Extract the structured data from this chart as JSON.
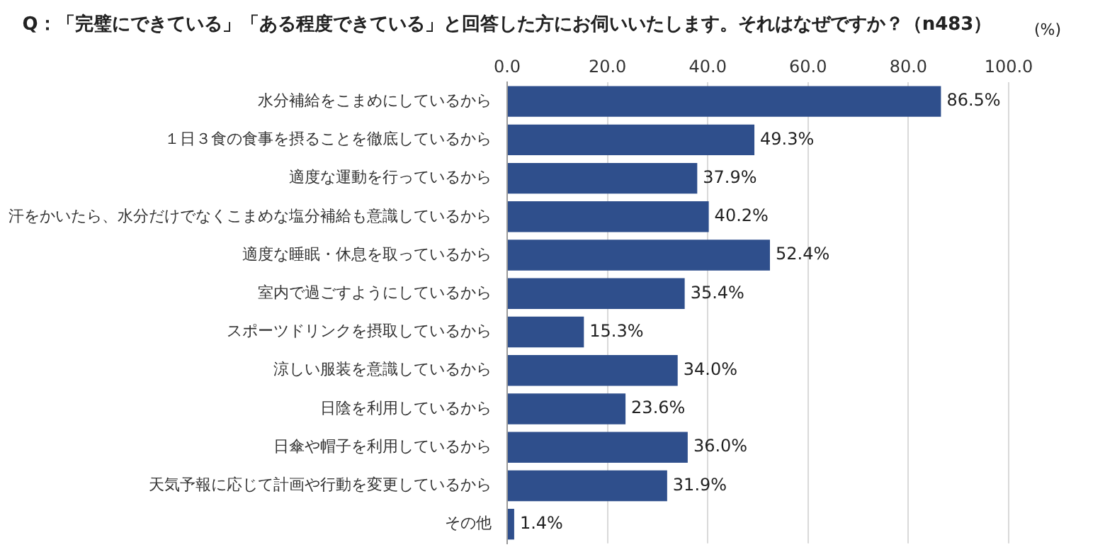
{
  "chart_data": {
    "type": "bar",
    "orientation": "horizontal",
    "title": "Q：「完璧にできている」「ある程度できている」と回答した方にお伺いいたします。それはなぜですか？（n483）",
    "xlabel": "(%)",
    "categories": [
      "水分補給をこまめにしているから",
      "１日３食の食事を摂ることを徹底しているから",
      "適度な運動を行っているから",
      "汗をかいたら、水分だけでなくこまめな塩分補給も意識しているから",
      "適度な睡眠・休息を取っているから",
      "室内で過ごすようにしているから",
      "スポーツドリンクを摂取しているから",
      "涼しい服装を意識しているから",
      "日陰を利用しているから",
      "日傘や帽子を利用しているから",
      "天気予報に応じて計画や行動を変更しているから",
      "その他"
    ],
    "values": [
      86.5,
      49.3,
      37.9,
      40.2,
      52.4,
      35.4,
      15.3,
      34.0,
      23.6,
      36.0,
      31.9,
      1.4
    ],
    "value_labels": [
      "86.5%",
      "49.3%",
      "37.9%",
      "40.2%",
      "52.4%",
      "35.4%",
      "15.3%",
      "34.0%",
      "23.6%",
      "36.0%",
      "31.9%",
      "1.4%"
    ],
    "color": "#2f4f8c",
    "xlim": [
      0,
      100
    ],
    "xticks": [
      {
        "value": 0,
        "label": "0.0"
      },
      {
        "value": 20,
        "label": "20.0"
      },
      {
        "value": 40,
        "label": "40.0"
      },
      {
        "value": 60,
        "label": "60.0"
      },
      {
        "value": 80,
        "label": "80.0"
      },
      {
        "value": 100,
        "label": "100.0"
      }
    ],
    "grid": "x",
    "legend": false
  }
}
